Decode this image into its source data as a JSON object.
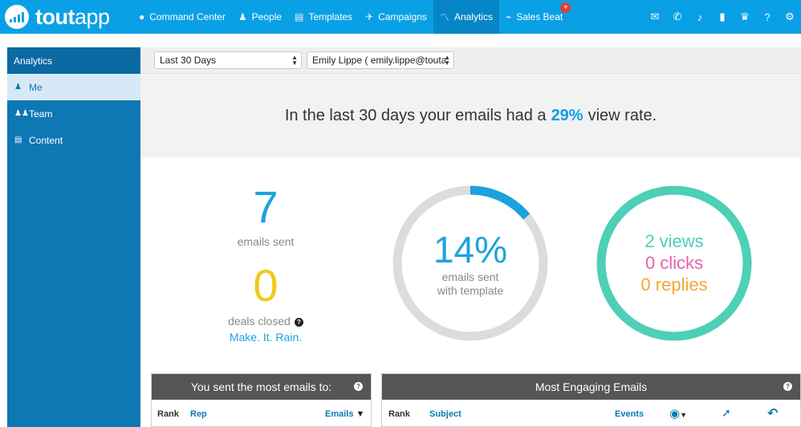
{
  "brand": {
    "name_bold": "tout",
    "name_light": "app"
  },
  "nav": {
    "items": [
      {
        "label": "Command Center",
        "icon": "chat-icon"
      },
      {
        "label": "People",
        "icon": "person-icon"
      },
      {
        "label": "Templates",
        "icon": "document-icon"
      },
      {
        "label": "Campaigns",
        "icon": "send-icon"
      },
      {
        "label": "Analytics",
        "icon": "chart-line-icon",
        "active": true
      },
      {
        "label": "Sales Beat",
        "icon": "pulse-icon",
        "badge": "+"
      }
    ],
    "right_icons": [
      "mail-icon",
      "phone-icon",
      "bell-icon",
      "bar-chart-icon",
      "trophy-icon",
      "help-icon",
      "gear-icon"
    ]
  },
  "sidebar": {
    "title": "Analytics",
    "items": [
      {
        "label": "Me",
        "active": true
      },
      {
        "label": "Team"
      },
      {
        "label": "Content"
      }
    ]
  },
  "filters": {
    "date_range": "Last 30 Days",
    "user": "Emily Lippe ( emily.lippe@toutapp"
  },
  "headline": {
    "prefix": "In the last 30 days your emails had a",
    "percent": "29%",
    "suffix": "view rate."
  },
  "stats": {
    "emails_sent": {
      "value": "7",
      "label": "emails sent"
    },
    "deals_closed": {
      "value": "0",
      "label": "deals closed",
      "tagline": "Make. It. Rain."
    },
    "template": {
      "value": "14%",
      "line1": "emails sent",
      "line2": "with template",
      "fraction": 0.14
    },
    "engagement": {
      "views": "2 views",
      "clicks": "0 clicks",
      "replies": "0 replies"
    }
  },
  "colors": {
    "brand_blue": "#0aa0e6",
    "emails_sent": "#1aa3dc",
    "deals_closed": "#f2c81c",
    "views": "#4dcfb8",
    "clicks": "#ea5fae",
    "replies": "#f5a533",
    "ring_track": "#dcdcdc"
  },
  "panels": {
    "left": {
      "title": "You sent the most emails to:",
      "cols": {
        "rank": "Rank",
        "rep": "Rep",
        "emails": "Emails"
      }
    },
    "right": {
      "title": "Most Engaging Emails",
      "cols": {
        "rank": "Rank",
        "subject": "Subject",
        "events": "Events"
      }
    }
  }
}
